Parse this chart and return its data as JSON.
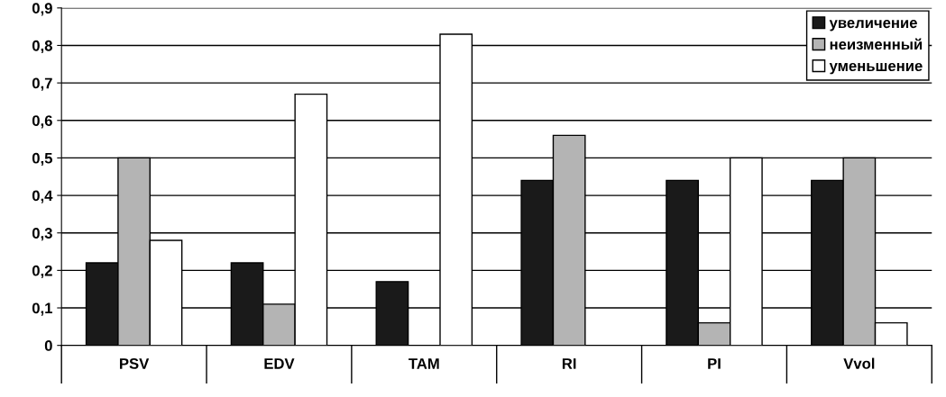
{
  "chart_data": {
    "type": "bar",
    "categories": [
      "PSV",
      "EDV",
      "TAM",
      "RI",
      "PI",
      "Vvol"
    ],
    "series": [
      {
        "name": "увеличение",
        "color": "#1a1a1a",
        "values": [
          0.22,
          0.22,
          0.17,
          0.44,
          0.44,
          0.44
        ]
      },
      {
        "name": "неизменный",
        "color": "#b4b4b4",
        "values": [
          0.5,
          0.11,
          0,
          0.56,
          0.06,
          0.5
        ]
      },
      {
        "name": "уменьшение",
        "color": "#ffffff",
        "values": [
          0.28,
          0.67,
          0.83,
          0,
          0.5,
          0.06
        ]
      }
    ],
    "ylim": [
      0,
      0.9
    ],
    "yticks": [
      {
        "value": 0,
        "label": "0"
      },
      {
        "value": 0.1,
        "label": "0,1"
      },
      {
        "value": 0.2,
        "label": "0,2"
      },
      {
        "value": 0.3,
        "label": "0,3"
      },
      {
        "value": 0.4,
        "label": "0,4"
      },
      {
        "value": 0.5,
        "label": "0,5"
      },
      {
        "value": 0.6,
        "label": "0,6"
      },
      {
        "value": 0.7,
        "label": "0,7"
      },
      {
        "value": 0.8,
        "label": "0,8"
      },
      {
        "value": 0.9,
        "label": "0,9"
      }
    ],
    "grid": "y",
    "legend": "top right"
  }
}
